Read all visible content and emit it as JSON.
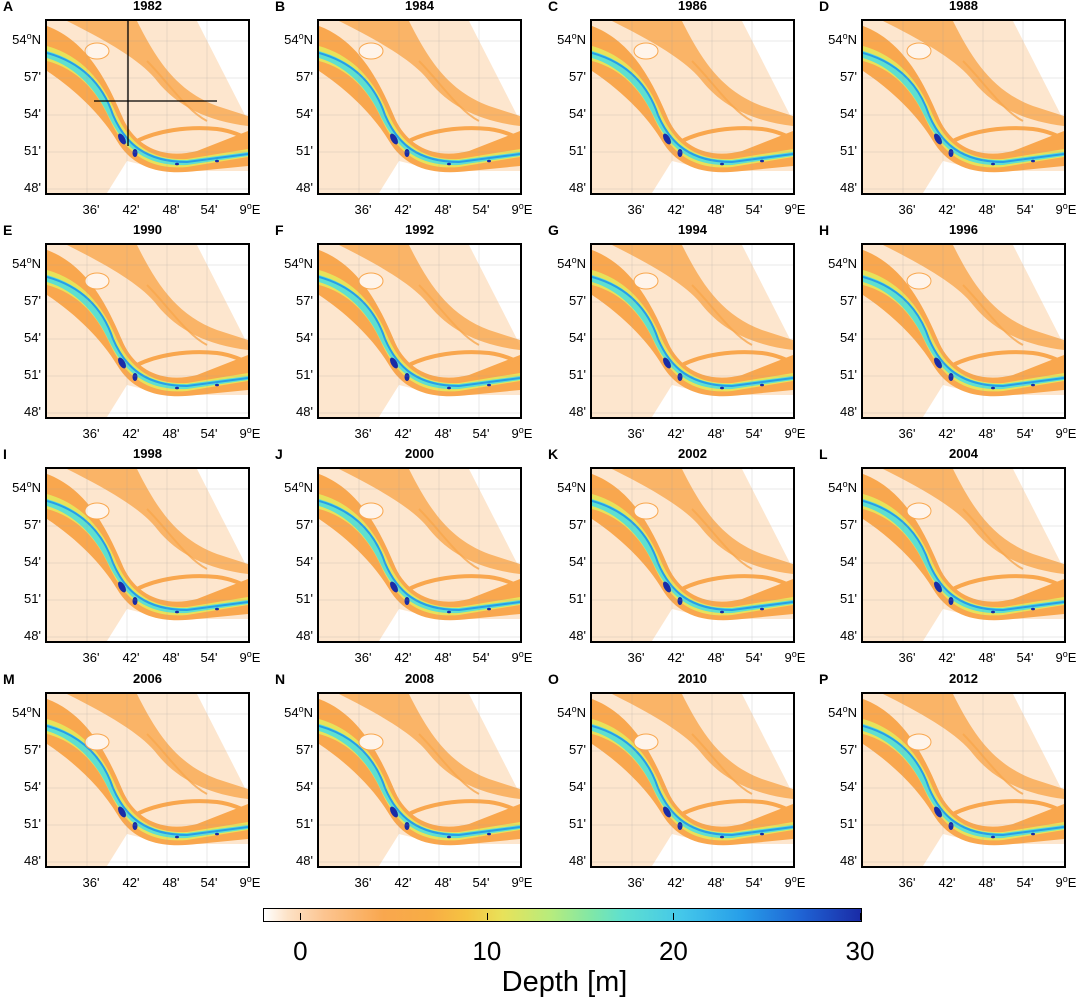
{
  "panels": [
    {
      "label": "A",
      "year": "1982",
      "crosshair": true
    },
    {
      "label": "B",
      "year": "1984"
    },
    {
      "label": "C",
      "year": "1986"
    },
    {
      "label": "D",
      "year": "1988"
    },
    {
      "label": "E",
      "year": "1990"
    },
    {
      "label": "F",
      "year": "1992"
    },
    {
      "label": "G",
      "year": "1994"
    },
    {
      "label": "H",
      "year": "1996"
    },
    {
      "label": "I",
      "year": "1998"
    },
    {
      "label": "J",
      "year": "2000"
    },
    {
      "label": "K",
      "year": "2002"
    },
    {
      "label": "L",
      "year": "2004"
    },
    {
      "label": "M",
      "year": "2006"
    },
    {
      "label": "N",
      "year": "2008"
    },
    {
      "label": "O",
      "year": "2010"
    },
    {
      "label": "P",
      "year": "2012"
    }
  ],
  "y_ticks": [
    {
      "num": "54",
      "deg": "o",
      "suffix": "N"
    },
    {
      "num": "57'"
    },
    {
      "num": "54'"
    },
    {
      "num": "51'"
    },
    {
      "num": "48'"
    }
  ],
  "x_ticks": [
    {
      "num": "36'"
    },
    {
      "num": "42'"
    },
    {
      "num": "48'"
    },
    {
      "num": "54'"
    },
    {
      "num": "9",
      "deg": "o",
      "suffix": "E"
    }
  ],
  "colorbar": {
    "label": "Depth [m]",
    "ticks": [
      "0",
      "10",
      "20",
      "30"
    ],
    "min": -2,
    "max": 30
  },
  "colors": {
    "shallow": "#fde2c6",
    "tidal_flat": "#f9a74e",
    "mid": "#e8e25a",
    "channel": "#5fe0cf",
    "deep": "#279ee9",
    "deepest": "#1a2ba6"
  }
}
